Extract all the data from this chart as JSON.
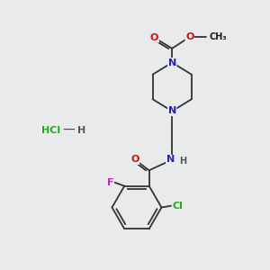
{
  "background_color": "#e8eaec",
  "fig_size": [
    3.0,
    3.0
  ],
  "dpi": 100,
  "atom_colors": {
    "C": "#1a1a1a",
    "N": "#2222bb",
    "O": "#cc1111",
    "F": "#cc22cc",
    "Cl": "#22aa22",
    "H": "#555555"
  },
  "bond_color": "#333333",
  "bond_width": 1.3,
  "font_size_atom": 8.0,
  "font_size_small": 7.0
}
